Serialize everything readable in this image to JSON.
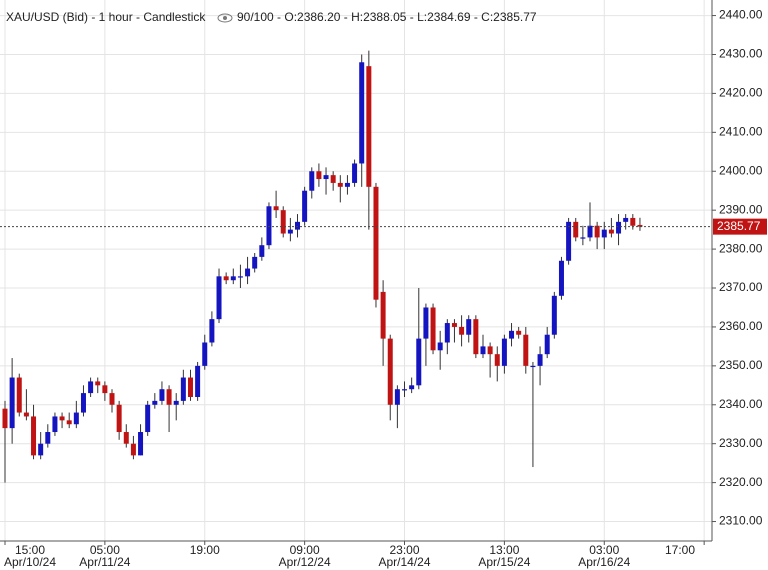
{
  "chart_data": {
    "type": "candlestick",
    "title": "XAU/USD (Bid) - 1 hour - Candlestick",
    "info": "90/100 - O:2386.20 - H:2388.05 - L:2384.69 - C:2385.77",
    "up_color": "#1414c0",
    "down_color": "#c01414",
    "grid": true,
    "last_price": 2385.77,
    "ylim": [
      2305,
      2444
    ],
    "yticks": [
      {
        "value": 2310,
        "label": "2310.00"
      },
      {
        "value": 2320,
        "label": "2320.00"
      },
      {
        "value": 2330,
        "label": "2330.00"
      },
      {
        "value": 2340,
        "label": "2340.00"
      },
      {
        "value": 2350,
        "label": "2350.00"
      },
      {
        "value": 2360,
        "label": "2360.00"
      },
      {
        "value": 2370,
        "label": "2370.00"
      },
      {
        "value": 2380,
        "label": "2380.00"
      },
      {
        "value": 2390,
        "label": "2390.00"
      },
      {
        "value": 2400,
        "label": "2400.00"
      },
      {
        "value": 2410,
        "label": "2410.00"
      },
      {
        "value": 2420,
        "label": "2420.00"
      },
      {
        "value": 2430,
        "label": "2430.00"
      },
      {
        "value": 2440,
        "label": "2440.00"
      }
    ],
    "xlim": [
      -0.7,
      99.1
    ],
    "xticks": [
      {
        "value": 0,
        "label": "15:00",
        "date": "Apr/10/24"
      },
      {
        "value": 14,
        "label": "05:00",
        "date": "Apr/11/24"
      },
      {
        "value": 28,
        "label": "19:00"
      },
      {
        "value": 42,
        "label": "09:00",
        "date": "Apr/12/24"
      },
      {
        "value": 56,
        "label": "23:00",
        "date": "Apr/14/24"
      },
      {
        "value": 70,
        "label": "13:00",
        "date": "Apr/15/24"
      },
      {
        "value": 84,
        "label": "03:00",
        "date": "Apr/16/24"
      },
      {
        "value": 98,
        "label": "17:00"
      }
    ],
    "open": [
      2339,
      2334,
      2347,
      2338,
      2337,
      2327,
      2330,
      2333,
      2337,
      2336,
      2335,
      2338,
      2343,
      2346,
      2345,
      2343,
      2340,
      2333,
      2330,
      2327,
      2333,
      2340,
      2341,
      2344,
      2340,
      2341,
      2347,
      2342,
      2350,
      2356,
      2362,
      2373,
      2372,
      2373,
      2373,
      2375,
      2378,
      2381,
      2391,
      2390,
      2384,
      2385,
      2387,
      2395,
      2400,
      2398,
      2399,
      2397,
      2396,
      2397,
      2402,
      2427,
      2396,
      2369,
      2357,
      2340,
      2344,
      2344,
      2345,
      2357,
      2365,
      2354,
      2356,
      2361,
      2360,
      2358,
      2362,
      2353,
      2355,
      2353,
      2350,
      2357,
      2359,
      2358,
      2350,
      2350,
      2353,
      2358,
      2368,
      2377,
      2387,
      2383,
      2383,
      2386,
      2383,
      2385,
      2384,
      2387,
      2388,
      2386.2
    ],
    "high": [
      2341,
      2352,
      2348,
      2344,
      2340,
      2333,
      2335,
      2338,
      2338,
      2338,
      2341,
      2345,
      2347,
      2347,
      2346,
      2344,
      2341,
      2335,
      2332,
      2335,
      2341,
      2343,
      2346,
      2345,
      2343,
      2349,
      2349,
      2351,
      2358,
      2364,
      2375,
      2374,
      2375,
      2376,
      2378,
      2379,
      2383,
      2392,
      2395,
      2391,
      2388,
      2389,
      2396,
      2401,
      2402,
      2401,
      2400,
      2399,
      2399,
      2403,
      2430,
      2431,
      2397,
      2372,
      2358,
      2345,
      2346,
      2347,
      2370,
      2366,
      2366,
      2359,
      2362,
      2362,
      2363,
      2363,
      2363,
      2358,
      2356,
      2355,
      2358,
      2361,
      2360,
      2360,
      2351,
      2355,
      2360,
      2369,
      2378,
      2388,
      2388,
      2386,
      2392,
      2387,
      2387,
      2388,
      2389,
      2389,
      2389,
      2388.05
    ],
    "low": [
      2320,
      2330,
      2337,
      2336,
      2326,
      2326,
      2329,
      2332,
      2334,
      2334,
      2334,
      2337,
      2342,
      2343,
      2341,
      2338,
      2331,
      2329,
      2326,
      2327,
      2332,
      2339,
      2340,
      2333,
      2336,
      2340,
      2341,
      2341,
      2349,
      2355,
      2361,
      2371,
      2371,
      2370,
      2371,
      2374,
      2377,
      2380,
      2388,
      2383,
      2382,
      2383,
      2386,
      2393,
      2396,
      2394,
      2395,
      2392,
      2394,
      2396,
      2396,
      2385,
      2365,
      2350,
      2336,
      2334,
      2342,
      2343,
      2344,
      2350,
      2353,
      2349,
      2353,
      2356,
      2355,
      2356,
      2352,
      2352,
      2347,
      2346,
      2348,
      2355,
      2357,
      2348,
      2324,
      2345,
      2352,
      2357,
      2367,
      2376,
      2382,
      2381,
      2382,
      2380,
      2380,
      2383,
      2381,
      2385,
      2385,
      2384.69
    ],
    "close": [
      2334,
      2347,
      2338,
      2337,
      2327,
      2330,
      2333,
      2337,
      2336,
      2335,
      2338,
      2343,
      2346,
      2345,
      2343,
      2340,
      2333,
      2330,
      2327,
      2333,
      2340,
      2341,
      2344,
      2340,
      2341,
      2347,
      2342,
      2350,
      2356,
      2362,
      2373,
      2372,
      2373,
      2373,
      2375,
      2378,
      2381,
      2391,
      2390,
      2384,
      2385,
      2387,
      2395,
      2400,
      2398,
      2399,
      2397,
      2396,
      2397,
      2402,
      2428,
      2396,
      2367,
      2357,
      2340,
      2344,
      2344,
      2345,
      2357,
      2365,
      2354,
      2356,
      2361,
      2360,
      2358,
      2362,
      2353,
      2355,
      2353,
      2350,
      2357,
      2359,
      2358,
      2350,
      2350,
      2353,
      2358,
      2368,
      2377,
      2387,
      2383,
      2383,
      2386,
      2383,
      2385,
      2384,
      2387,
      2388,
      2386,
      2385.77
    ]
  }
}
